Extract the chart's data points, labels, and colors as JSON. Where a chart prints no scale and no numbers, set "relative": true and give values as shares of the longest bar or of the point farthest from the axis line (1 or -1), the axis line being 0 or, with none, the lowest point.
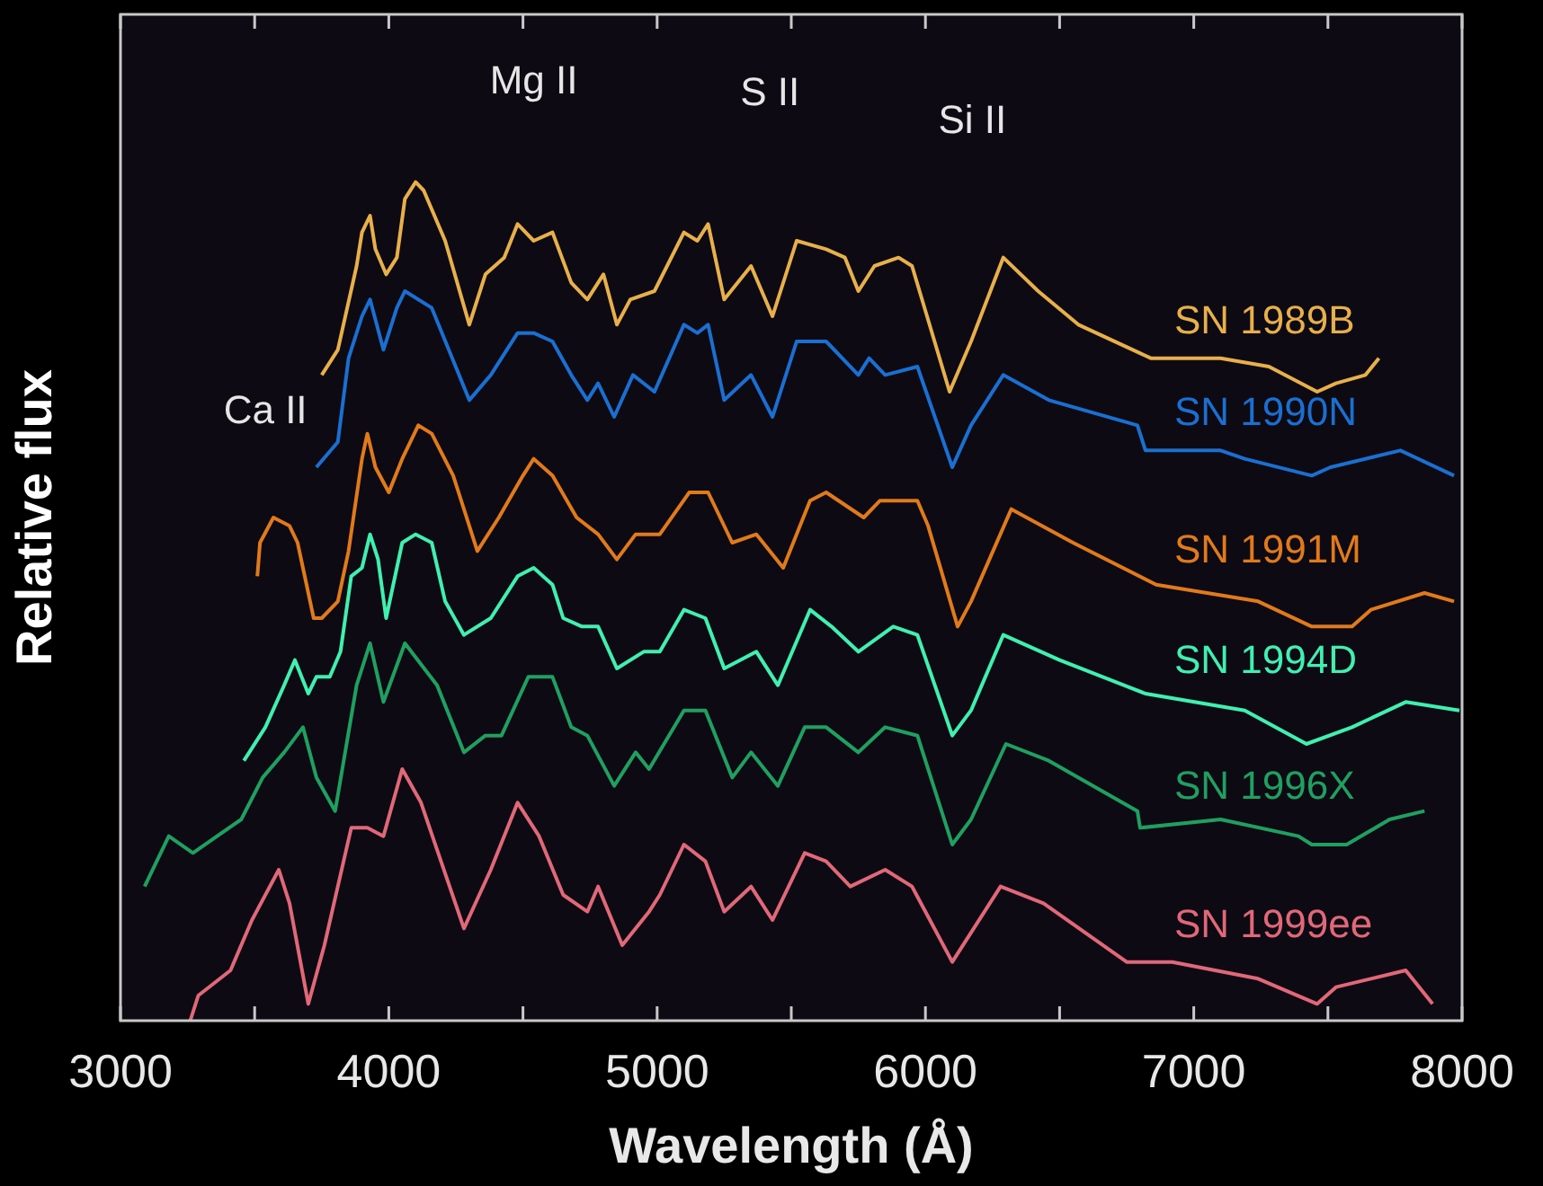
{
  "chart_data": {
    "type": "line",
    "relative": true,
    "xlabel": "Wavelength (Å)",
    "ylabel": "Relative flux",
    "xlim": [
      3000,
      8000
    ],
    "xticks": [
      3000,
      {
        "value": 3500,
        "label": null
      },
      4000,
      {
        "value": 4500,
        "label": null
      },
      5000,
      {
        "value": 5500,
        "label": null
      },
      6000,
      {
        "value": 6500,
        "label": null
      },
      7000,
      {
        "value": 7500,
        "label": null
      },
      8000
    ],
    "annotations": [
      "Ca II",
      "Mg II",
      "S II",
      "Si II"
    ],
    "series": [
      {
        "name": "SN 1989B",
        "color": "#e8b04a",
        "x": [
          3750,
          3810,
          3880,
          3900,
          3930,
          3950,
          3990,
          4030,
          4060,
          4100,
          4130,
          4210,
          4300,
          4360,
          4430,
          4480,
          4540,
          4610,
          4680,
          4740,
          4800,
          4850,
          4900,
          4990,
          5100,
          5150,
          5190,
          5250,
          5350,
          5430,
          5520,
          5630,
          5700,
          5750,
          5810,
          5900,
          5950,
          6090,
          6170,
          6290,
          6420,
          6570,
          6840,
          7100,
          7280,
          7460,
          7530,
          7640,
          7690
        ],
        "values": [
          0.77,
          0.8,
          0.9,
          0.94,
          0.96,
          0.92,
          0.89,
          0.91,
          0.98,
          1,
          0.99,
          0.93,
          0.83,
          0.89,
          0.91,
          0.95,
          0.93,
          0.94,
          0.88,
          0.86,
          0.89,
          0.83,
          0.86,
          0.87,
          0.94,
          0.93,
          0.95,
          0.86,
          0.9,
          0.84,
          0.93,
          0.92,
          0.91,
          0.87,
          0.9,
          0.91,
          0.9,
          0.75,
          0.81,
          0.91,
          0.87,
          0.83,
          0.79,
          0.79,
          0.78,
          0.75,
          0.76,
          0.77,
          0.79
        ]
      },
      {
        "name": "SN 1990N",
        "color": "#1a6fd0",
        "x": [
          3730,
          3810,
          3850,
          3900,
          3930,
          3980,
          4030,
          4060,
          4160,
          4300,
          4380,
          4480,
          4540,
          4610,
          4680,
          4740,
          4780,
          4840,
          4910,
          4990,
          5100,
          5150,
          5190,
          5250,
          5350,
          5430,
          5520,
          5630,
          5750,
          5790,
          5850,
          5970,
          6100,
          6170,
          6290,
          6460,
          6790,
          6820,
          7100,
          7190,
          7440,
          7510,
          7770,
          7970
        ],
        "values": [
          0.66,
          0.69,
          0.79,
          0.84,
          0.86,
          0.8,
          0.85,
          0.87,
          0.85,
          0.74,
          0.77,
          0.82,
          0.82,
          0.81,
          0.77,
          0.74,
          0.76,
          0.72,
          0.77,
          0.75,
          0.83,
          0.82,
          0.83,
          0.74,
          0.77,
          0.72,
          0.81,
          0.81,
          0.77,
          0.79,
          0.77,
          0.78,
          0.66,
          0.71,
          0.77,
          0.74,
          0.71,
          0.68,
          0.68,
          0.67,
          0.65,
          0.66,
          0.68,
          0.65
        ]
      },
      {
        "name": "SN 1991M",
        "color": "#e07a1a",
        "x": [
          3510,
          3520,
          3570,
          3630,
          3660,
          3720,
          3750,
          3810,
          3850,
          3900,
          3920,
          3950,
          4000,
          4050,
          4110,
          4160,
          4240,
          4330,
          4410,
          4500,
          4540,
          4610,
          4700,
          4780,
          4850,
          4920,
          5010,
          5120,
          5190,
          5280,
          5370,
          5470,
          5570,
          5630,
          5770,
          5830,
          5970,
          6010,
          6120,
          6170,
          6320,
          6550,
          6860,
          7240,
          7440,
          7530,
          7590,
          7660,
          7860,
          7970
        ],
        "values": [
          0.53,
          0.57,
          0.6,
          0.59,
          0.57,
          0.48,
          0.48,
          0.5,
          0.56,
          0.67,
          0.7,
          0.66,
          0.63,
          0.67,
          0.71,
          0.7,
          0.65,
          0.56,
          0.6,
          0.65,
          0.67,
          0.65,
          0.6,
          0.58,
          0.55,
          0.58,
          0.58,
          0.63,
          0.63,
          0.57,
          0.58,
          0.54,
          0.62,
          0.63,
          0.6,
          0.62,
          0.62,
          0.59,
          0.47,
          0.5,
          0.61,
          0.57,
          0.52,
          0.5,
          0.47,
          0.47,
          0.47,
          0.49,
          0.51,
          0.5
        ]
      },
      {
        "name": "SN 1994D",
        "color": "#3ff0b0",
        "x": [
          3460,
          3540,
          3610,
          3650,
          3700,
          3730,
          3780,
          3820,
          3860,
          3900,
          3930,
          3960,
          3990,
          4050,
          4100,
          4160,
          4210,
          4280,
          4380,
          4480,
          4540,
          4610,
          4650,
          4720,
          4780,
          4850,
          4950,
          5010,
          5100,
          5180,
          5250,
          5370,
          5450,
          5570,
          5650,
          5750,
          5880,
          5970,
          6100,
          6170,
          6290,
          6500,
          6820,
          7190,
          7420,
          7590,
          7790,
          7990
        ],
        "values": [
          0.31,
          0.35,
          0.4,
          0.43,
          0.39,
          0.41,
          0.41,
          0.44,
          0.53,
          0.54,
          0.58,
          0.55,
          0.48,
          0.57,
          0.58,
          0.57,
          0.5,
          0.46,
          0.48,
          0.53,
          0.54,
          0.52,
          0.48,
          0.47,
          0.47,
          0.42,
          0.44,
          0.44,
          0.49,
          0.48,
          0.42,
          0.44,
          0.4,
          0.49,
          0.47,
          0.44,
          0.47,
          0.46,
          0.34,
          0.37,
          0.46,
          0.43,
          0.39,
          0.37,
          0.33,
          0.35,
          0.38,
          0.37
        ]
      },
      {
        "name": "SN 1996X",
        "color": "#1fa060",
        "x": [
          3090,
          3180,
          3270,
          3360,
          3450,
          3530,
          3610,
          3680,
          3730,
          3800,
          3880,
          3930,
          3980,
          4060,
          4180,
          4280,
          4360,
          4420,
          4520,
          4610,
          4680,
          4740,
          4840,
          4920,
          4970,
          5100,
          5180,
          5280,
          5350,
          5450,
          5550,
          5630,
          5750,
          5850,
          5970,
          6100,
          6170,
          6300,
          6460,
          6790,
          6800,
          7100,
          7390,
          7440,
          7570,
          7730,
          7860
        ],
        "values": [
          0.16,
          0.22,
          0.2,
          0.22,
          0.24,
          0.29,
          0.32,
          0.35,
          0.29,
          0.25,
          0.4,
          0.45,
          0.38,
          0.45,
          0.4,
          0.32,
          0.34,
          0.34,
          0.41,
          0.41,
          0.35,
          0.34,
          0.28,
          0.32,
          0.3,
          0.37,
          0.37,
          0.29,
          0.32,
          0.28,
          0.35,
          0.35,
          0.32,
          0.35,
          0.34,
          0.21,
          0.24,
          0.33,
          0.31,
          0.25,
          0.23,
          0.24,
          0.22,
          0.21,
          0.21,
          0.24,
          0.25
        ]
      },
      {
        "name": "SN 1999ee",
        "color": "#e06878",
        "x": [
          3260,
          3290,
          3410,
          3490,
          3590,
          3630,
          3700,
          3760,
          3860,
          3920,
          3980,
          4050,
          4120,
          4280,
          4380,
          4480,
          4560,
          4650,
          4740,
          4780,
          4870,
          4970,
          5010,
          5100,
          5180,
          5250,
          5350,
          5430,
          5550,
          5630,
          5720,
          5850,
          5950,
          6100,
          6280,
          6440,
          6750,
          6920,
          7240,
          7460,
          7530,
          7790,
          7890
        ],
        "values": [
          0,
          0.03,
          0.06,
          0.12,
          0.18,
          0.14,
          0.02,
          0.09,
          0.23,
          0.23,
          0.22,
          0.3,
          0.26,
          0.11,
          0.18,
          0.26,
          0.22,
          0.15,
          0.13,
          0.16,
          0.09,
          0.13,
          0.15,
          0.21,
          0.19,
          0.13,
          0.16,
          0.12,
          0.2,
          0.19,
          0.16,
          0.18,
          0.16,
          0.07,
          0.16,
          0.14,
          0.07,
          0.07,
          0.05,
          0.02,
          0.04,
          0.06,
          0.02
        ]
      }
    ]
  }
}
